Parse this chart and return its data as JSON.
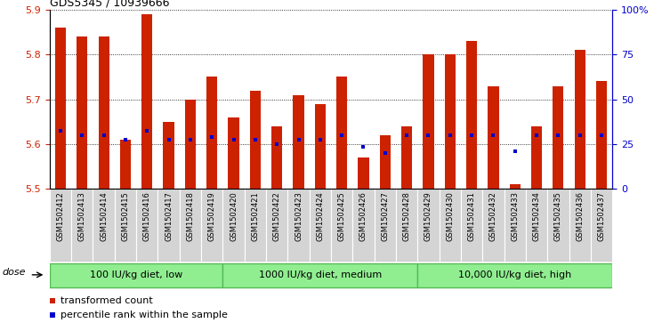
{
  "title": "GDS5345 / 10939666",
  "samples": [
    "GSM1502412",
    "GSM1502413",
    "GSM1502414",
    "GSM1502415",
    "GSM1502416",
    "GSM1502417",
    "GSM1502418",
    "GSM1502419",
    "GSM1502420",
    "GSM1502421",
    "GSM1502422",
    "GSM1502423",
    "GSM1502424",
    "GSM1502425",
    "GSM1502426",
    "GSM1502427",
    "GSM1502428",
    "GSM1502429",
    "GSM1502430",
    "GSM1502431",
    "GSM1502432",
    "GSM1502433",
    "GSM1502434",
    "GSM1502435",
    "GSM1502436",
    "GSM1502437"
  ],
  "bar_tops": [
    5.86,
    5.84,
    5.84,
    5.61,
    5.89,
    5.65,
    5.7,
    5.75,
    5.66,
    5.72,
    5.64,
    5.71,
    5.69,
    5.75,
    5.57,
    5.62,
    5.64,
    5.8,
    5.8,
    5.83,
    5.73,
    5.51,
    5.64,
    5.73,
    5.81,
    5.74
  ],
  "blue_dots": [
    5.63,
    5.62,
    5.62,
    5.61,
    5.63,
    5.61,
    5.61,
    5.615,
    5.61,
    5.61,
    5.6,
    5.61,
    5.61,
    5.62,
    5.595,
    5.58,
    5.62,
    5.62,
    5.62,
    5.62,
    5.62,
    5.585,
    5.62,
    5.62,
    5.62,
    5.62
  ],
  "ylim_min": 5.5,
  "ylim_max": 5.9,
  "yticks": [
    5.5,
    5.6,
    5.7,
    5.8,
    5.9
  ],
  "bar_color": "#cc2200",
  "blue_color": "#0000cc",
  "group1_count": 8,
  "group2_count": 9,
  "group3_count": 9,
  "group1_label": "100 IU/kg diet, low",
  "group2_label": "1000 IU/kg diet, medium",
  "group3_label": "10,000 IU/kg diet, high",
  "dose_label": "dose",
  "legend1": "transformed count",
  "legend2": "percentile rank within the sample",
  "right_ytick_pcts": [
    0,
    25,
    50,
    75,
    100
  ],
  "right_ylabels": [
    "0",
    "25",
    "50",
    "75",
    "100%"
  ],
  "tick_bg_color": "#d0d0d0",
  "tick_bg_color2": "#c0c0c0",
  "green_light": "#aaddaa",
  "green_mid": "#88cc88",
  "green_dark": "#66bb66"
}
